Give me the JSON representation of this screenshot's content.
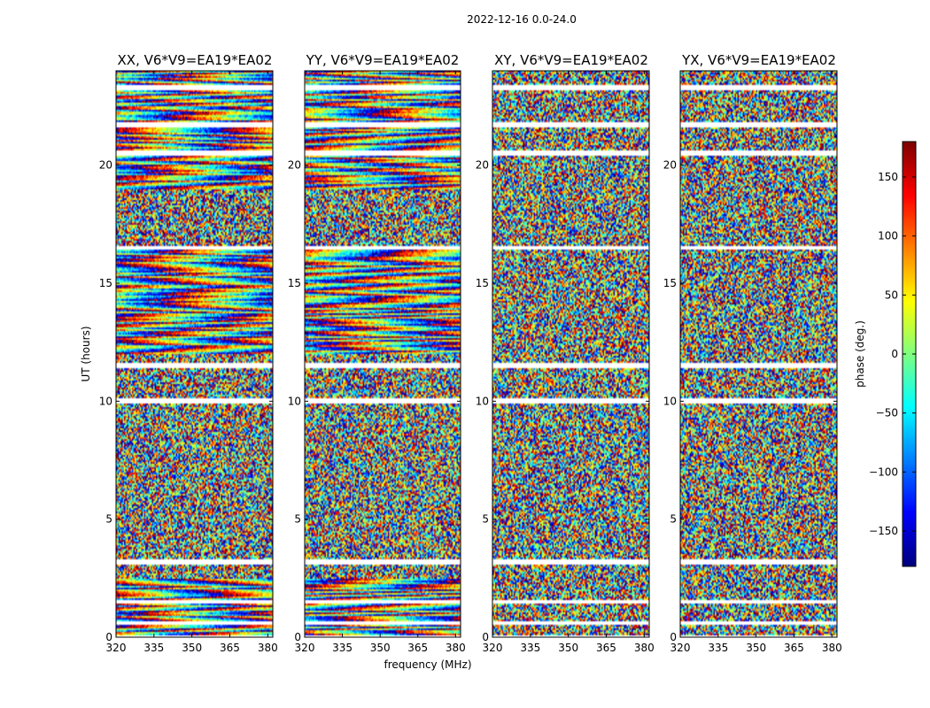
{
  "figure_title": "2022-12-16 0.0-24.0",
  "xlabel": "frequency (MHz)",
  "ylabel": "UT (hours)",
  "colorbar": {
    "label": "phase (deg.)",
    "colormap": "jet",
    "range": [
      -180,
      180
    ],
    "ticks": [
      -150,
      -100,
      -50,
      0,
      50,
      100,
      150
    ],
    "tick_labels": [
      "−150",
      "−100",
      "−50",
      "0",
      "50",
      "100",
      "150"
    ]
  },
  "chart_data": {
    "type": "heatmap",
    "title": "2022-12-16 0.0-24.0",
    "xlabel": "frequency (MHz)",
    "ylabel": "UT (hours)",
    "xlim": [
      320,
      382
    ],
    "ylim": [
      0,
      24
    ],
    "x_ticks": [
      320,
      335,
      350,
      365,
      380
    ],
    "y_ticks": [
      0,
      5,
      10,
      15,
      20
    ],
    "value_label": "phase (deg.)",
    "value_range": [
      -180,
      180
    ],
    "panels": [
      {
        "name": "xx",
        "title": "XX, V6*V9=EA19*EA02",
        "phase_gradient_deg_per_mhz": -8
      },
      {
        "name": "yy",
        "title": "YY, V6*V9=EA19*EA02",
        "phase_gradient_deg_per_mhz": -8
      },
      {
        "name": "xy",
        "title": "XY, V6*V9=EA19*EA02",
        "phase_gradient_deg_per_mhz": 0
      },
      {
        "name": "yx",
        "title": "YX, V6*V9=EA19*EA02",
        "phase_gradient_deg_per_mhz": 0
      }
    ],
    "flagged_time_ranges_hours": [
      [
        0.0,
        0.1
      ],
      [
        0.5,
        0.7
      ],
      [
        1.4,
        1.6
      ],
      [
        3.1,
        3.3
      ],
      [
        11.4,
        11.6
      ],
      [
        9.9,
        10.1
      ],
      [
        20.4,
        20.6
      ],
      [
        16.4,
        16.6
      ],
      [
        21.6,
        21.8
      ],
      [
        23.2,
        23.4
      ]
    ]
  }
}
